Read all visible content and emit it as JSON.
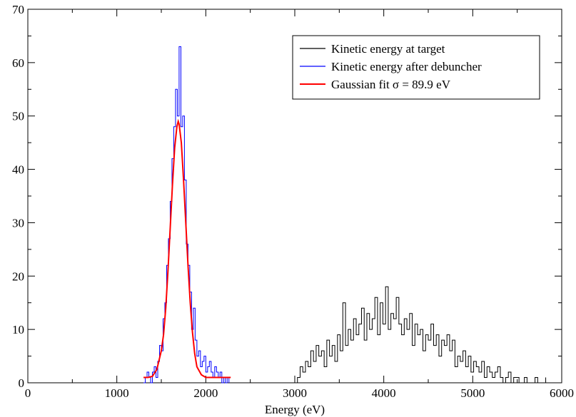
{
  "chart_data": {
    "type": "line",
    "title": "",
    "xlabel": "Energy (eV)",
    "ylabel": "",
    "xlim": [
      0,
      6000
    ],
    "ylim": [
      0,
      70
    ],
    "xticks": [
      0,
      1000,
      2000,
      3000,
      4000,
      5000,
      6000
    ],
    "yticks": [
      0,
      10,
      20,
      30,
      40,
      50,
      60,
      70
    ],
    "grid": false,
    "legend_position": "top-right",
    "series": [
      {
        "name": "Kinetic energy at target",
        "color": "#000000",
        "style": "histogram",
        "x": [
          3000,
          3030,
          3060,
          3090,
          3120,
          3150,
          3180,
          3210,
          3240,
          3270,
          3300,
          3330,
          3360,
          3390,
          3420,
          3450,
          3480,
          3510,
          3540,
          3570,
          3600,
          3630,
          3660,
          3690,
          3720,
          3750,
          3780,
          3810,
          3840,
          3870,
          3900,
          3930,
          3960,
          3990,
          4020,
          4050,
          4080,
          4110,
          4140,
          4170,
          4200,
          4230,
          4260,
          4290,
          4320,
          4350,
          4380,
          4410,
          4440,
          4470,
          4500,
          4530,
          4560,
          4590,
          4620,
          4650,
          4680,
          4710,
          4740,
          4770,
          4800,
          4830,
          4860,
          4890,
          4920,
          4950,
          4980,
          5010,
          5040,
          5070,
          5100,
          5130,
          5160,
          5190,
          5220,
          5250,
          5280,
          5310,
          5340,
          5370,
          5400,
          5430,
          5460,
          5490,
          5520,
          5550,
          5580,
          5610,
          5640,
          5670,
          5700,
          5730,
          5760,
          5790,
          5820
        ],
        "y": [
          0,
          1,
          3,
          2,
          4,
          3,
          6,
          4,
          7,
          5,
          6,
          3,
          8,
          5,
          7,
          4,
          9,
          6,
          15,
          7,
          10,
          8,
          12,
          9,
          11,
          14,
          8,
          13,
          10,
          12,
          16,
          9,
          15,
          11,
          18,
          10,
          13,
          12,
          16,
          11,
          9,
          12,
          10,
          13,
          7,
          11,
          9,
          10,
          6,
          9,
          8,
          11,
          7,
          9,
          5,
          8,
          7,
          9,
          6,
          8,
          3,
          5,
          4,
          6,
          3,
          5,
          2,
          4,
          3,
          2,
          4,
          1,
          3,
          2,
          1,
          2,
          3,
          1,
          0,
          1,
          2,
          0,
          1,
          1,
          0,
          0,
          1,
          0,
          0,
          0,
          1,
          0,
          0,
          0,
          1
        ]
      },
      {
        "name": "Kinetic energy after debuncher",
        "color": "#0000ff",
        "style": "histogram",
        "x": [
          1300,
          1320,
          1340,
          1360,
          1380,
          1400,
          1420,
          1440,
          1460,
          1480,
          1500,
          1520,
          1540,
          1560,
          1580,
          1600,
          1620,
          1640,
          1660,
          1680,
          1700,
          1720,
          1740,
          1760,
          1780,
          1800,
          1820,
          1840,
          1860,
          1880,
          1900,
          1920,
          1940,
          1960,
          1980,
          2000,
          2020,
          2040,
          2060,
          2080,
          2100,
          2120,
          2140,
          2160,
          2180,
          2200,
          2220,
          2240,
          2260
        ],
        "y": [
          0,
          1,
          2,
          1,
          0,
          2,
          3,
          1,
          4,
          7,
          6,
          12,
          15,
          22,
          27,
          34,
          42,
          48,
          55,
          50,
          63,
          48,
          50,
          38,
          26,
          22,
          17,
          10,
          14,
          8,
          5,
          6,
          3,
          4,
          5,
          2,
          3,
          4,
          2,
          1,
          3,
          2,
          1,
          2,
          0,
          1,
          0,
          1,
          0
        ]
      },
      {
        "name": "Gaussian fit σ = 89.9 eV",
        "color": "#ff0000",
        "style": "line",
        "x": [
          1300,
          1350,
          1400,
          1450,
          1500,
          1525,
          1550,
          1575,
          1600,
          1625,
          1650,
          1675,
          1690,
          1700,
          1725,
          1750,
          1775,
          1800,
          1825,
          1850,
          1875,
          1900,
          1950,
          2000,
          2050,
          2100,
          2150,
          2200,
          2250,
          2280
        ],
        "y": [
          1,
          1,
          1.2,
          2.5,
          6,
          9,
          14,
          21,
          29,
          37,
          44,
          48,
          49,
          48.5,
          45,
          38,
          30,
          22,
          15,
          9.5,
          5.5,
          3,
          1.5,
          1,
          1,
          1,
          1,
          1,
          1,
          1
        ]
      }
    ]
  }
}
